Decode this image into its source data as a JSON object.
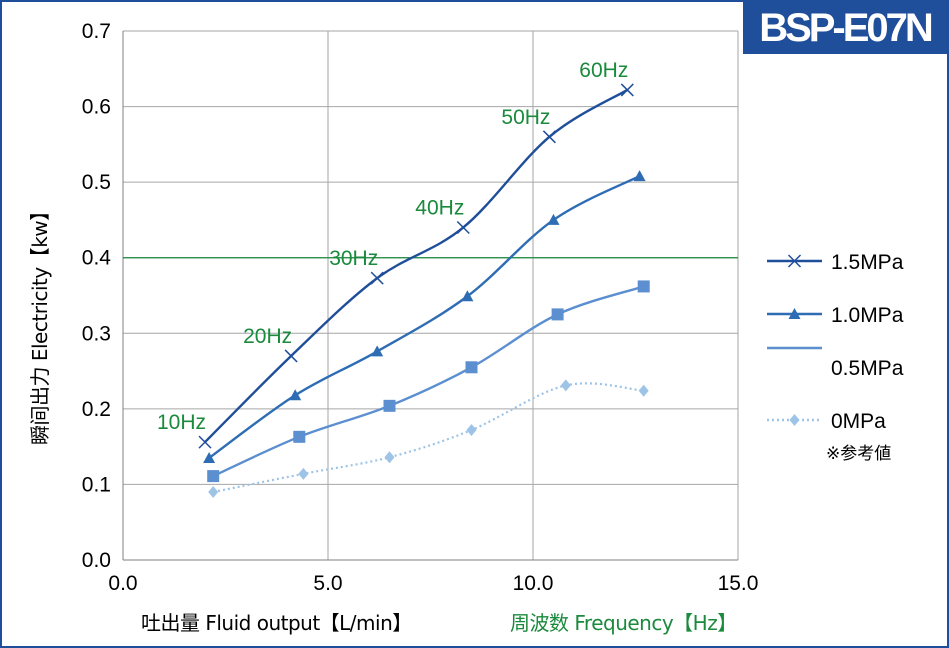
{
  "badge": {
    "model": "BSP-E07N"
  },
  "chart_data": {
    "type": "line",
    "title": "",
    "xlabel": "吐出量 Fluid output【L/min】",
    "xlabel_secondary": "周波数 Frequency【Hz】",
    "ylabel": "瞬间出力 Electricity【kw】",
    "xlim": [
      0,
      15
    ],
    "ylim": [
      0,
      0.7
    ],
    "x_ticks": [
      "0.0",
      "5.0",
      "10.0",
      "15.0"
    ],
    "y_ticks": [
      "0.0",
      "0.1",
      "0.2",
      "0.3",
      "0.4",
      "0.5",
      "0.6",
      "0.7"
    ],
    "grid": true,
    "reference_line": {
      "y": 0.4,
      "color": "#1a8a3c"
    },
    "legend_position": "right",
    "legend_note": "※参考値",
    "series": [
      {
        "name": "1.5MPa",
        "marker": "x",
        "color": "#1f4e9a",
        "dash": "solid",
        "points": [
          [
            2.0,
            0.156
          ],
          [
            4.1,
            0.27
          ],
          [
            6.2,
            0.373
          ],
          [
            8.3,
            0.44
          ],
          [
            10.4,
            0.56
          ],
          [
            12.3,
            0.622
          ]
        ]
      },
      {
        "name": "1.0MPa",
        "marker": "triangle",
        "color": "#2e6db4",
        "dash": "solid",
        "points": [
          [
            2.1,
            0.135
          ],
          [
            4.2,
            0.218
          ],
          [
            6.2,
            0.276
          ],
          [
            8.4,
            0.349
          ],
          [
            10.5,
            0.45
          ],
          [
            12.6,
            0.508
          ]
        ]
      },
      {
        "name": "0.5MPa",
        "marker": "square",
        "color": "#5b8fd0",
        "dash": "solid",
        "points": [
          [
            2.2,
            0.111
          ],
          [
            4.3,
            0.163
          ],
          [
            6.5,
            0.204
          ],
          [
            8.5,
            0.255
          ],
          [
            10.6,
            0.325
          ],
          [
            12.7,
            0.362
          ]
        ]
      },
      {
        "name": "0MPa",
        "marker": "diamond",
        "color": "#9dc3e6",
        "dash": "dotted",
        "points": [
          [
            2.2,
            0.09
          ],
          [
            4.4,
            0.114
          ],
          [
            6.5,
            0.136
          ],
          [
            8.5,
            0.172
          ],
          [
            10.8,
            0.231
          ],
          [
            12.7,
            0.224
          ]
        ]
      }
    ],
    "frequency_labels": [
      {
        "text": "10Hz",
        "x": 2.0,
        "y": 0.156
      },
      {
        "text": "20Hz",
        "x": 4.1,
        "y": 0.27
      },
      {
        "text": "30Hz",
        "x": 6.2,
        "y": 0.373
      },
      {
        "text": "40Hz",
        "x": 8.3,
        "y": 0.44
      },
      {
        "text": "50Hz",
        "x": 10.4,
        "y": 0.56
      },
      {
        "text": "60Hz",
        "x": 12.3,
        "y": 0.622
      }
    ]
  }
}
